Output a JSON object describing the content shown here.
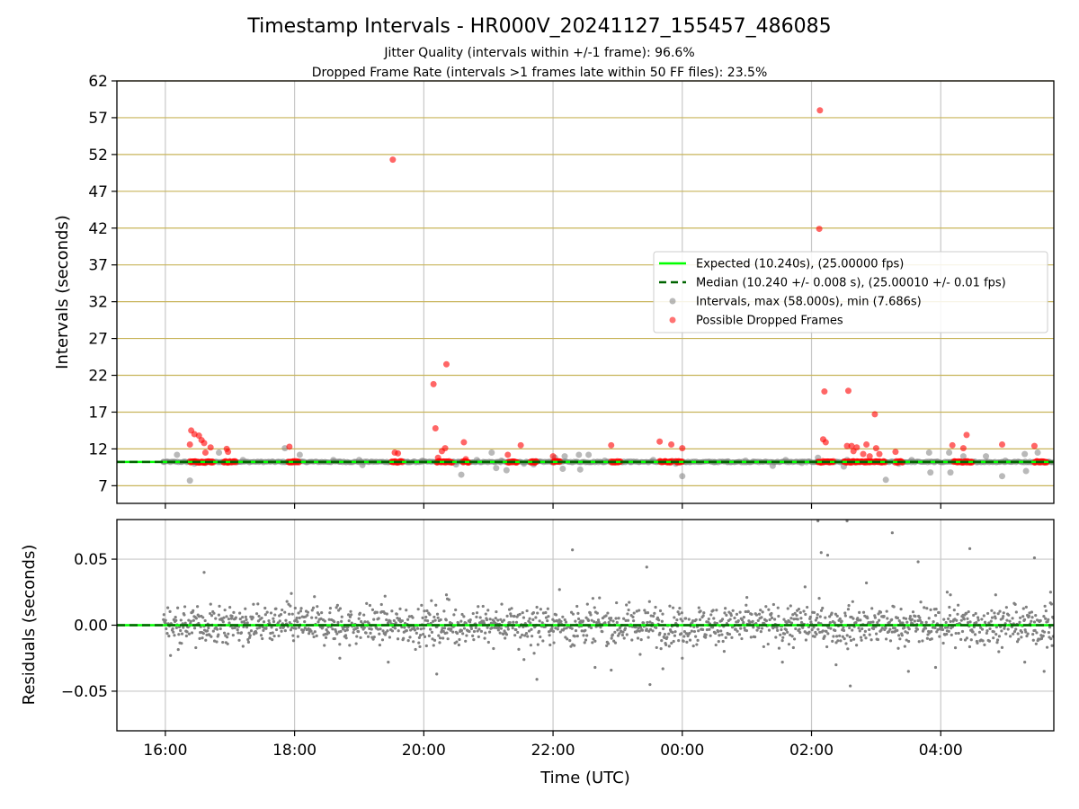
{
  "figure": {
    "title": "Timestamp Intervals - HR000V_20241127_155457_486085",
    "subtitle1": "Jitter Quality (intervals within +/-1 frame): 96.6%",
    "subtitle2": "Dropped Frame Rate (intervals >1 frames late within 50 FF files): 23.5%"
  },
  "colors": {
    "expected": "#00ff00",
    "median": "#006400",
    "intervals": "#808080",
    "dropped": "#ff0000",
    "goldgrid": "#c8b45a",
    "grid": "#c8c8c8"
  },
  "chart_data": [
    {
      "type": "scatter",
      "panel": "top",
      "ylabel": "Intervals (seconds)",
      "xlabel": "",
      "x_ticks": [
        "16:00",
        "18:00",
        "20:00",
        "22:00",
        "00:00",
        "02:00",
        "04:00"
      ],
      "x_tick_hours": [
        16,
        18,
        20,
        22,
        24,
        26,
        28
      ],
      "xlim_hours": [
        15.25,
        29.75
      ],
      "ylim": [
        4.6,
        62
      ],
      "y_ticks": [
        7,
        12,
        17,
        22,
        27,
        32,
        37,
        42,
        47,
        52,
        57,
        62
      ],
      "grid": true,
      "legend_position": "center-right",
      "legend": [
        {
          "label": "Expected (10.240s), (25.00000 fps)",
          "style": "solid-line",
          "color": "#00ff00"
        },
        {
          "label": "Median (10.240 +/- 0.008 s), (25.00010 +/- 0.01 fps)",
          "style": "dashed-line",
          "color": "#006400"
        },
        {
          "label": "Intervals, max (58.000s), min (7.686s)",
          "style": "dot",
          "color": "#808080"
        },
        {
          "label": "Possible Dropped Frames",
          "style": "dot",
          "color": "#ff0000"
        }
      ],
      "reference_lines": {
        "expected": 10.24,
        "median": 10.24
      },
      "series": [
        {
          "name": "Intervals, max (58.000s), min (7.686s)",
          "points": [
            [
              15.97,
              10.24
            ],
            [
              16.18,
              11.2
            ],
            [
              16.38,
              7.7
            ],
            [
              16.45,
              10.0
            ],
            [
              16.62,
              10.1
            ],
            [
              16.83,
              11.5
            ],
            [
              17.2,
              10.5
            ],
            [
              17.85,
              12.1
            ],
            [
              18.08,
              11.2
            ],
            [
              18.6,
              10.5
            ],
            [
              18.7,
              10.3
            ],
            [
              19.0,
              10.5
            ],
            [
              19.05,
              9.8
            ],
            [
              19.75,
              10.2
            ],
            [
              19.98,
              10.4
            ],
            [
              20.5,
              9.9
            ],
            [
              20.58,
              8.5
            ],
            [
              20.82,
              10.5
            ],
            [
              21.05,
              11.5
            ],
            [
              21.12,
              9.4
            ],
            [
              21.2,
              10.4
            ],
            [
              21.28,
              9.1
            ],
            [
              21.55,
              10.0
            ],
            [
              21.7,
              9.9
            ],
            [
              22.03,
              10.8
            ],
            [
              22.15,
              9.3
            ],
            [
              22.18,
              11.0
            ],
            [
              22.4,
              11.2
            ],
            [
              22.42,
              9.2
            ],
            [
              22.55,
              11.2
            ],
            [
              22.8,
              10.4
            ],
            [
              23.2,
              10.3
            ],
            [
              23.55,
              10.5
            ],
            [
              23.9,
              10.0
            ],
            [
              24.0,
              8.3
            ],
            [
              24.5,
              10.2
            ],
            [
              24.7,
              10.3
            ],
            [
              24.98,
              10.4
            ],
            [
              25.4,
              9.7
            ],
            [
              25.6,
              10.5
            ],
            [
              25.85,
              10.1
            ],
            [
              26.1,
              10.8
            ],
            [
              26.25,
              10.3
            ],
            [
              26.5,
              9.6
            ],
            [
              26.55,
              10.5
            ],
            [
              26.7,
              10.2
            ],
            [
              27.0,
              10.3
            ],
            [
              27.15,
              7.8
            ],
            [
              27.35,
              10.0
            ],
            [
              27.55,
              10.5
            ],
            [
              27.82,
              11.5
            ],
            [
              27.84,
              8.8
            ],
            [
              27.9,
              10.2
            ],
            [
              28.13,
              11.5
            ],
            [
              28.15,
              8.8
            ],
            [
              28.35,
              11.0
            ],
            [
              28.7,
              11.0
            ],
            [
              28.95,
              8.3
            ],
            [
              29.0,
              10.4
            ],
            [
              29.3,
              11.3
            ],
            [
              29.32,
              9.0
            ],
            [
              29.5,
              11.5
            ],
            [
              29.6,
              10.2
            ]
          ]
        },
        {
          "name": "Possible Dropped Frames",
          "points": [
            [
              16.38,
              12.6
            ],
            [
              16.4,
              14.5
            ],
            [
              16.45,
              14.0
            ],
            [
              16.52,
              13.8
            ],
            [
              16.56,
              13.2
            ],
            [
              16.6,
              12.8
            ],
            [
              16.62,
              11.5
            ],
            [
              16.7,
              12.2
            ],
            [
              16.95,
              12.0
            ],
            [
              16.97,
              11.6
            ],
            [
              17.92,
              12.3
            ],
            [
              19.52,
              51.3
            ],
            [
              19.55,
              11.5
            ],
            [
              19.6,
              11.4
            ],
            [
              20.15,
              20.8
            ],
            [
              20.18,
              14.8
            ],
            [
              20.22,
              10.8
            ],
            [
              20.28,
              11.7
            ],
            [
              20.33,
              12.1
            ],
            [
              20.35,
              23.5
            ],
            [
              20.62,
              12.9
            ],
            [
              20.65,
              10.6
            ],
            [
              21.3,
              11.2
            ],
            [
              21.5,
              12.5
            ],
            [
              22.0,
              11.0
            ],
            [
              22.9,
              12.5
            ],
            [
              23.65,
              13.0
            ],
            [
              23.83,
              12.6
            ],
            [
              24.0,
              12.1
            ],
            [
              26.13,
              58.0
            ],
            [
              26.12,
              41.9
            ],
            [
              26.18,
              13.3
            ],
            [
              26.2,
              19.8
            ],
            [
              26.22,
              12.9
            ],
            [
              26.55,
              12.4
            ],
            [
              26.57,
              19.9
            ],
            [
              26.62,
              12.4
            ],
            [
              26.65,
              11.7
            ],
            [
              26.7,
              12.2
            ],
            [
              26.8,
              11.3
            ],
            [
              26.85,
              12.6
            ],
            [
              26.9,
              11.0
            ],
            [
              26.98,
              16.7
            ],
            [
              27.0,
              12.1
            ],
            [
              27.05,
              11.3
            ],
            [
              27.3,
              11.6
            ],
            [
              28.18,
              12.5
            ],
            [
              28.35,
              12.1
            ],
            [
              28.4,
              13.9
            ],
            [
              28.95,
              12.6
            ],
            [
              29.45,
              12.4
            ]
          ]
        }
      ],
      "dense_bands": {
        "description_free": true,
        "red_clusters_hours": [
          [
            16.38,
            16.75
          ],
          [
            16.9,
            17.1
          ],
          [
            17.9,
            18.08
          ],
          [
            19.5,
            19.68
          ],
          [
            20.2,
            20.45
          ],
          [
            20.6,
            20.7
          ],
          [
            21.3,
            21.45
          ],
          [
            21.65,
            21.75
          ],
          [
            22.0,
            22.12
          ],
          [
            22.9,
            23.05
          ],
          [
            23.65,
            23.85
          ],
          [
            23.9,
            24.0
          ],
          [
            26.1,
            26.35
          ],
          [
            26.5,
            26.95
          ],
          [
            26.97,
            27.15
          ],
          [
            27.3,
            27.42
          ],
          [
            28.2,
            28.5
          ],
          [
            29.45,
            29.65
          ]
        ],
        "red_cluster_value": 10.24
      }
    },
    {
      "type": "scatter",
      "panel": "bottom",
      "ylabel": "Residuals (seconds)",
      "xlabel": "Time (UTC)",
      "x_ticks": [
        "16:00",
        "18:00",
        "20:00",
        "22:00",
        "00:00",
        "02:00",
        "04:00"
      ],
      "x_tick_hours": [
        16,
        18,
        20,
        22,
        24,
        26,
        28
      ],
      "xlim_hours": [
        15.25,
        29.75
      ],
      "ylim": [
        -0.08,
        0.08
      ],
      "y_ticks": [
        -0.05,
        0.0,
        0.05
      ],
      "y_tick_labels": [
        "−0.05",
        "0.00",
        "0.05"
      ],
      "grid": true,
      "reference_lines": {
        "expected": 0.0,
        "median": 0.0
      },
      "series": [
        {
          "name": "",
          "points": [
            [
              16.6,
              0.04
            ],
            [
              17.95,
              0.024
            ],
            [
              18.7,
              -0.025
            ],
            [
              19.4,
              0.022
            ],
            [
              19.45,
              -0.028
            ],
            [
              20.2,
              -0.037
            ],
            [
              20.35,
              0.023
            ],
            [
              21.3,
              0.0
            ],
            [
              21.55,
              -0.026
            ],
            [
              21.75,
              -0.041
            ],
            [
              22.1,
              0.027
            ],
            [
              22.3,
              0.057
            ],
            [
              22.65,
              -0.032
            ],
            [
              22.9,
              -0.034
            ],
            [
              23.45,
              0.044
            ],
            [
              23.5,
              -0.045
            ],
            [
              23.7,
              -0.033
            ],
            [
              24.0,
              -0.025
            ],
            [
              25.0,
              0.021
            ],
            [
              25.55,
              -0.028
            ],
            [
              25.9,
              0.029
            ],
            [
              26.1,
              0.079
            ],
            [
              26.15,
              0.055
            ],
            [
              26.25,
              0.053
            ],
            [
              26.38,
              -0.03
            ],
            [
              26.55,
              0.079
            ],
            [
              26.6,
              -0.046
            ],
            [
              26.85,
              0.032
            ],
            [
              27.25,
              0.07
            ],
            [
              27.5,
              -0.035
            ],
            [
              27.65,
              0.048
            ],
            [
              27.92,
              -0.032
            ],
            [
              28.1,
              0.025
            ],
            [
              28.15,
              0.023
            ],
            [
              28.45,
              0.058
            ],
            [
              28.85,
              0.023
            ],
            [
              29.3,
              -0.028
            ],
            [
              29.45,
              0.051
            ],
            [
              29.6,
              -0.035
            ],
            [
              29.7,
              0.025
            ]
          ]
        }
      ]
    }
  ]
}
